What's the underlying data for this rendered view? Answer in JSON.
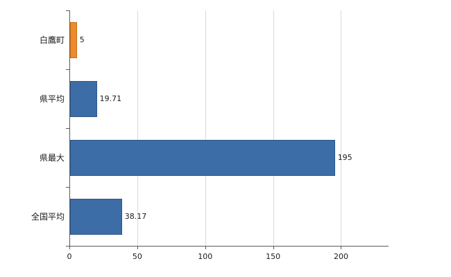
{
  "chart_data": {
    "type": "bar",
    "orientation": "horizontal",
    "title": "",
    "xlabel": "",
    "ylabel": "",
    "categories": [
      "白鷹町",
      "県平均",
      "県最大",
      "全国平均"
    ],
    "values": [
      5,
      19.71,
      195,
      38.17
    ],
    "value_labels": [
      "5",
      "19.71",
      "195",
      "38.17"
    ],
    "bar_colors": [
      "#ed8b2d",
      "#3c6da6",
      "#3c6da6",
      "#3c6da6"
    ],
    "bar_border_colors": [
      "#c96e15",
      "#2f578a",
      "#2f578a",
      "#2f578a"
    ],
    "xlim": [
      0,
      235
    ],
    "x_ticks": [
      0,
      50,
      100,
      150,
      200
    ],
    "grid": true,
    "legend": false,
    "gridline_color": "#d9d9d9",
    "axis_color": "#595959",
    "text_color": "#1a1a1a",
    "background": "#ffffff"
  }
}
